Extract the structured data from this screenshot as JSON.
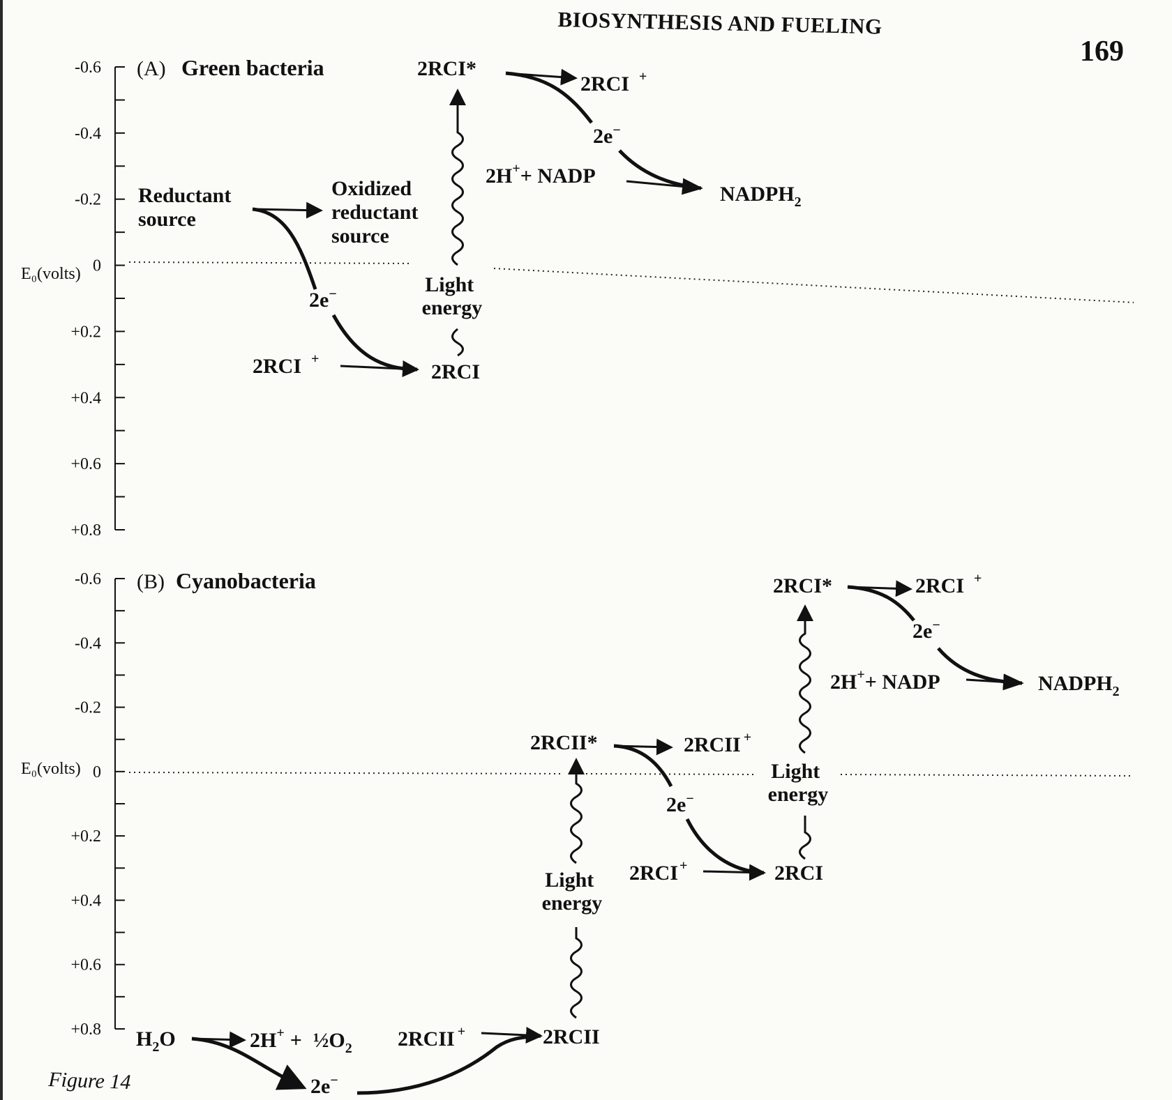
{
  "running_head": "BIOSYNTHESIS AND FUELING",
  "page_number": "169",
  "figure_label": "Figure 14",
  "axis": {
    "label": "E₀(volts)",
    "ticks": [
      "-0.6",
      "-0.4",
      "-0.2",
      "0",
      "+0.2",
      "+0.4",
      "+0.6",
      "+0.8"
    ]
  },
  "panel_a": {
    "letter": "(A)",
    "title": "Green bacteria",
    "reductant_source": [
      "Reductant",
      "source"
    ],
    "oxidized_reductant_source": [
      "Oxidized",
      "reductant",
      "source"
    ],
    "electrons": "2e",
    "electron_charge": "−",
    "rci_plus": "2RCI",
    "plus": "+",
    "rci": "2RCI",
    "rci_star": "2RCI*",
    "light_energy": [
      "Light",
      "energy"
    ],
    "h_plus_nadp": "2H",
    "nadp": "+ NADP",
    "nadph": "NADPH",
    "nadph_sub": "2"
  },
  "panel_b": {
    "letter": "(B)",
    "title": "Cyanobacteria",
    "water": "H",
    "water_sub": "2",
    "water_o": "O",
    "protons": "2H",
    "plus": "+",
    "plus_sep": "+",
    "oxygen_half": "½O",
    "oxygen_sub": "2",
    "rcii_plus": "2RCII",
    "rcii": "2RCII",
    "rcii_star": "2RCII*",
    "electrons": "2e",
    "electron_charge": "−",
    "light_energy": [
      "Light",
      "energy"
    ],
    "rci_plus": "2RCI",
    "rci": "2RCI",
    "rci_star": "2RCI*",
    "h_plus_nadp": "2H",
    "nadp": "+ NADP",
    "nadph": "NADPH",
    "nadph_sub": "2"
  }
}
